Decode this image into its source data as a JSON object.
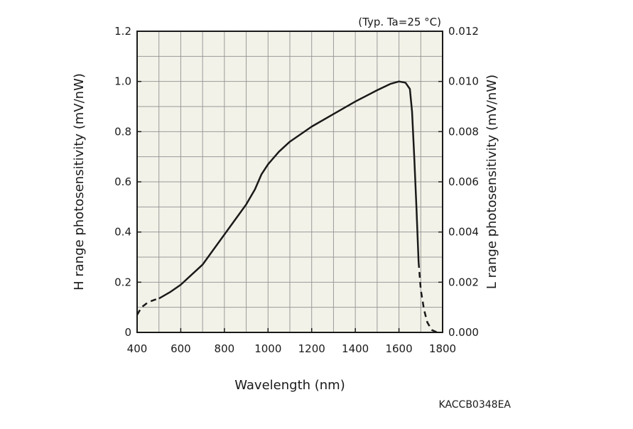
{
  "chart_data": {
    "type": "line",
    "title": "",
    "condition_note": "(Typ. Ta=25 °C)",
    "xlabel": "Wavelength (nm)",
    "ylabel_left": "H range photosensitivity (mV/nW)",
    "ylabel_right": "L range photosensitivity (mV/nW)",
    "xlim": [
      400,
      1800
    ],
    "ylim_left": [
      0,
      1.2
    ],
    "ylim_right": [
      0,
      0.012
    ],
    "x_ticks": [
      400,
      600,
      800,
      1000,
      1200,
      1400,
      1600,
      1800
    ],
    "x_tick_labels": [
      "400",
      "600",
      "800",
      "1000",
      "1200",
      "1400",
      "1600",
      "1800"
    ],
    "y_left_ticks": [
      0,
      0.2,
      0.4,
      0.6,
      0.8,
      1.0,
      1.2
    ],
    "y_left_tick_labels": [
      "0",
      "0.2",
      "0.4",
      "0.6",
      "0.8",
      "1.0",
      "1.2"
    ],
    "y_right_ticks": [
      0,
      0.002,
      0.004,
      0.006,
      0.008,
      0.01,
      0.012
    ],
    "y_right_tick_labels": [
      "0.000",
      "0.002",
      "0.004",
      "0.006",
      "0.008",
      "0.010",
      "0.012"
    ],
    "grid": true,
    "x_minor_step": 100,
    "y_minor_step": 0.1,
    "plot_background": "#f3f2e8",
    "grid_color": "#9a9a9a",
    "line_color": "#1a1a1a",
    "series": [
      {
        "style": "dashed",
        "points": [
          [
            400,
            0.07
          ],
          [
            420,
            0.1
          ],
          [
            450,
            0.12
          ],
          [
            480,
            0.13
          ],
          [
            500,
            0.135
          ]
        ]
      },
      {
        "style": "solid",
        "points": [
          [
            500,
            0.135
          ],
          [
            550,
            0.16
          ],
          [
            600,
            0.19
          ],
          [
            650,
            0.23
          ],
          [
            700,
            0.27
          ],
          [
            750,
            0.33
          ],
          [
            800,
            0.39
          ],
          [
            850,
            0.45
          ],
          [
            900,
            0.51
          ],
          [
            940,
            0.57
          ],
          [
            970,
            0.63
          ],
          [
            1000,
            0.67
          ],
          [
            1050,
            0.72
          ],
          [
            1100,
            0.76
          ],
          [
            1200,
            0.82
          ],
          [
            1300,
            0.87
          ],
          [
            1400,
            0.92
          ],
          [
            1500,
            0.965
          ],
          [
            1560,
            0.99
          ],
          [
            1600,
            1.0
          ],
          [
            1630,
            0.995
          ],
          [
            1650,
            0.97
          ],
          [
            1660,
            0.88
          ],
          [
            1670,
            0.7
          ],
          [
            1680,
            0.5
          ],
          [
            1690,
            0.28
          ]
        ]
      },
      {
        "style": "dashed",
        "points": [
          [
            1690,
            0.28
          ],
          [
            1700,
            0.17
          ],
          [
            1715,
            0.09
          ],
          [
            1730,
            0.04
          ],
          [
            1750,
            0.01
          ],
          [
            1775,
            0.0
          ]
        ]
      }
    ]
  },
  "figure_code": "KACCB0348EA"
}
